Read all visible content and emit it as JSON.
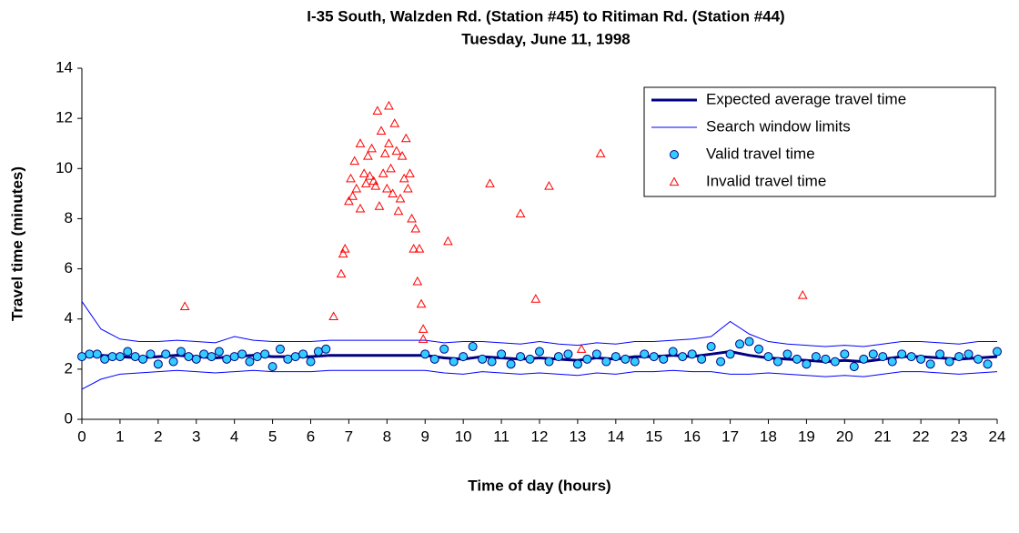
{
  "chart_data": {
    "type": "scatter",
    "title": "I-35 South, Walzden Rd. (Station #45) to Ritiman Rd. (Station #44)",
    "subtitle": "Tuesday, June 11, 1998",
    "x_label": "Time of day (hours)",
    "y_label": "Travel time (minutes)",
    "xlim": [
      0,
      24
    ],
    "xticks": [
      0,
      1,
      2,
      3,
      4,
      5,
      6,
      7,
      8,
      9,
      10,
      11,
      12,
      13,
      14,
      15,
      16,
      17,
      18,
      19,
      20,
      21,
      22,
      23,
      24
    ],
    "ylim": [
      0,
      14
    ],
    "yticks": [
      0,
      2,
      4,
      6,
      8,
      10,
      12,
      14
    ],
    "grid": false,
    "legend": "top-right",
    "series": [
      {
        "name": "Expected average travel time",
        "mark": "line",
        "color": "#000080",
        "x": [
          0,
          0.5,
          1,
          1.5,
          2,
          2.5,
          3,
          3.5,
          4,
          4.5,
          5,
          5.5,
          6,
          6.5,
          7,
          7.5,
          8,
          8.5,
          9,
          9.5,
          10,
          10.5,
          11,
          11.5,
          12,
          12.5,
          13,
          13.5,
          14,
          14.5,
          15,
          15.5,
          16,
          16.5,
          17,
          17.5,
          18,
          18.5,
          19,
          19.5,
          20,
          20.5,
          21,
          21.5,
          22,
          22.5,
          23,
          23.5,
          24
        ],
        "values": [
          2.5,
          2.55,
          2.5,
          2.45,
          2.5,
          2.55,
          2.5,
          2.45,
          2.5,
          2.55,
          2.5,
          2.5,
          2.5,
          2.55,
          2.55,
          2.55,
          2.55,
          2.55,
          2.55,
          2.45,
          2.4,
          2.5,
          2.45,
          2.4,
          2.45,
          2.4,
          2.35,
          2.45,
          2.4,
          2.5,
          2.5,
          2.55,
          2.5,
          2.6,
          2.7,
          2.55,
          2.45,
          2.4,
          2.35,
          2.3,
          2.35,
          2.3,
          2.4,
          2.5,
          2.5,
          2.45,
          2.4,
          2.45,
          2.5
        ]
      },
      {
        "name": "Search window limits",
        "mark": "band-lines",
        "color": "#0000ff",
        "x": [
          0,
          0.5,
          1,
          1.5,
          2,
          2.5,
          3,
          3.5,
          4,
          4.5,
          5,
          5.5,
          6,
          6.5,
          7,
          7.5,
          8,
          8.5,
          9,
          9.5,
          10,
          10.5,
          11,
          11.5,
          12,
          12.5,
          13,
          13.5,
          14,
          14.5,
          15,
          15.5,
          16,
          16.5,
          17,
          17.5,
          18,
          18.5,
          19,
          19.5,
          20,
          20.5,
          21,
          21.5,
          22,
          22.5,
          23,
          23.5,
          24
        ],
        "values": [
          4.7,
          3.6,
          3.2,
          3.1,
          3.1,
          3.15,
          3.1,
          3.05,
          3.3,
          3.15,
          3.1,
          3.1,
          3.1,
          3.15,
          3.15,
          3.15,
          3.15,
          3.15,
          3.15,
          3.05,
          3.1,
          3.1,
          3.05,
          3.0,
          3.1,
          3.0,
          2.95,
          3.05,
          3.0,
          3.1,
          3.1,
          3.15,
          3.2,
          3.3,
          3.9,
          3.4,
          3.1,
          3.0,
          2.95,
          2.9,
          2.95,
          2.9,
          3.0,
          3.1,
          3.1,
          3.05,
          3.0,
          3.1,
          3.1
        ],
        "lower": [
          1.2,
          1.6,
          1.8,
          1.85,
          1.9,
          1.95,
          1.9,
          1.85,
          1.9,
          1.95,
          1.9,
          1.9,
          1.9,
          1.95,
          1.95,
          1.95,
          1.95,
          1.95,
          1.95,
          1.85,
          1.8,
          1.9,
          1.85,
          1.8,
          1.85,
          1.8,
          1.75,
          1.85,
          1.8,
          1.9,
          1.9,
          1.95,
          1.9,
          1.9,
          1.8,
          1.8,
          1.85,
          1.8,
          1.75,
          1.7,
          1.75,
          1.7,
          1.8,
          1.9,
          1.9,
          1.85,
          1.8,
          1.85,
          1.9
        ]
      },
      {
        "name": "Valid travel time",
        "mark": "circle",
        "color": "#33ccff",
        "edge": "#000080",
        "x": [
          0,
          0.2,
          0.4,
          0.6,
          0.8,
          1,
          1.2,
          1.4,
          1.6,
          1.8,
          2,
          2.2,
          2.4,
          2.6,
          2.8,
          3,
          3.2,
          3.4,
          3.6,
          3.8,
          4,
          4.2,
          4.4,
          4.6,
          4.8,
          5,
          5.2,
          5.4,
          5.6,
          5.8,
          6,
          6.2,
          6.4,
          9,
          9.25,
          9.5,
          9.75,
          10,
          10.25,
          10.5,
          10.75,
          11,
          11.25,
          11.5,
          11.75,
          12,
          12.25,
          12.5,
          12.75,
          13,
          13.25,
          13.5,
          13.75,
          14,
          14.25,
          14.5,
          14.75,
          15,
          15.25,
          15.5,
          15.75,
          16,
          16.25,
          16.5,
          16.75,
          17,
          17.25,
          17.5,
          17.75,
          18,
          18.25,
          18.5,
          18.75,
          19,
          19.25,
          19.5,
          19.75,
          20,
          20.25,
          20.5,
          20.75,
          21,
          21.25,
          21.5,
          21.75,
          22,
          22.25,
          22.5,
          22.75,
          23,
          23.25,
          23.5,
          23.75,
          24
        ],
        "values": [
          2.5,
          2.6,
          2.6,
          2.4,
          2.5,
          2.5,
          2.7,
          2.5,
          2.4,
          2.6,
          2.2,
          2.6,
          2.3,
          2.7,
          2.5,
          2.4,
          2.6,
          2.5,
          2.7,
          2.4,
          2.5,
          2.6,
          2.3,
          2.5,
          2.6,
          2.1,
          2.8,
          2.4,
          2.5,
          2.6,
          2.3,
          2.7,
          2.8,
          2.6,
          2.4,
          2.8,
          2.3,
          2.5,
          2.9,
          2.4,
          2.3,
          2.6,
          2.2,
          2.5,
          2.4,
          2.7,
          2.3,
          2.5,
          2.6,
          2.2,
          2.4,
          2.6,
          2.3,
          2.5,
          2.4,
          2.3,
          2.6,
          2.5,
          2.4,
          2.7,
          2.5,
          2.6,
          2.4,
          2.9,
          2.3,
          2.6,
          3.0,
          3.1,
          2.8,
          2.5,
          2.3,
          2.6,
          2.4,
          2.2,
          2.5,
          2.4,
          2.3,
          2.6,
          2.1,
          2.4,
          2.6,
          2.5,
          2.3,
          2.6,
          2.5,
          2.4,
          2.2,
          2.6,
          2.3,
          2.5,
          2.6,
          2.4,
          2.2,
          2.7
        ]
      },
      {
        "name": "Invalid travel time",
        "mark": "triangle",
        "color": "#ff0000",
        "x": [
          2.7,
          6.6,
          6.8,
          6.85,
          6.9,
          7.0,
          7.05,
          7.1,
          7.15,
          7.2,
          7.3,
          7.3,
          7.4,
          7.45,
          7.5,
          7.55,
          7.6,
          7.65,
          7.7,
          7.75,
          7.8,
          7.85,
          7.9,
          7.95,
          8.0,
          8.05,
          8.05,
          8.1,
          8.15,
          8.2,
          8.25,
          8.3,
          8.35,
          8.4,
          8.45,
          8.5,
          8.55,
          8.6,
          8.65,
          8.7,
          8.75,
          8.8,
          8.85,
          8.9,
          8.95,
          8.95,
          9.6,
          10.7,
          11.5,
          11.9,
          12.25,
          13.1,
          13.6,
          18.9
        ],
        "values": [
          4.5,
          4.1,
          5.8,
          6.6,
          6.8,
          8.7,
          9.6,
          8.9,
          10.3,
          9.2,
          8.4,
          11.0,
          9.8,
          9.4,
          10.5,
          9.7,
          10.8,
          9.5,
          9.3,
          12.3,
          8.5,
          11.5,
          9.8,
          10.6,
          9.2,
          11.0,
          12.5,
          10.0,
          9.0,
          11.8,
          10.7,
          8.3,
          8.8,
          10.5,
          9.6,
          11.2,
          9.2,
          9.8,
          8.0,
          6.8,
          7.6,
          5.5,
          6.8,
          4.6,
          3.6,
          3.2,
          7.1,
          9.4,
          8.2,
          4.8,
          9.3,
          2.8,
          10.6,
          4.95
        ]
      }
    ]
  }
}
